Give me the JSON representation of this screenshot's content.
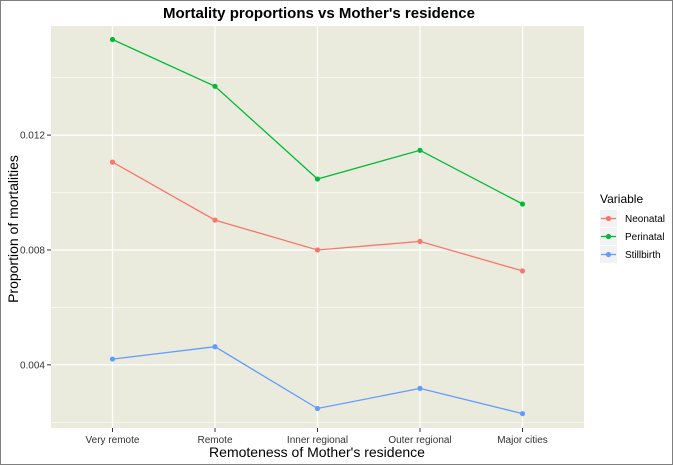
{
  "chart_data": {
    "type": "line",
    "title": "Mortality proportions vs Mother's residence",
    "xlabel": "Remoteness of Mother's residence",
    "ylabel": "Proportion of mortalities",
    "categories": [
      "Very remote",
      "Remote",
      "Inner regional",
      "Outer regional",
      "Major cities"
    ],
    "ylim": [
      0.0018,
      0.0158
    ],
    "yticks": [
      0.004,
      0.008,
      0.012
    ],
    "ytick_labels": [
      "0.004",
      "0.008",
      "0.012"
    ],
    "grid": true,
    "legend": {
      "title": "Variable",
      "placement": "right"
    },
    "series": [
      {
        "name": "Neonatal",
        "color": "#F8766D",
        "values": [
          0.01106,
          0.00904,
          0.008,
          0.0083,
          0.00727
        ]
      },
      {
        "name": "Perinatal",
        "color": "#00BA38",
        "values": [
          0.01533,
          0.0137,
          0.01047,
          0.01147,
          0.0096
        ]
      },
      {
        "name": "Stillbirth",
        "color": "#619CFF",
        "values": [
          0.0042,
          0.00463,
          0.00248,
          0.00318,
          0.0023
        ]
      }
    ]
  }
}
